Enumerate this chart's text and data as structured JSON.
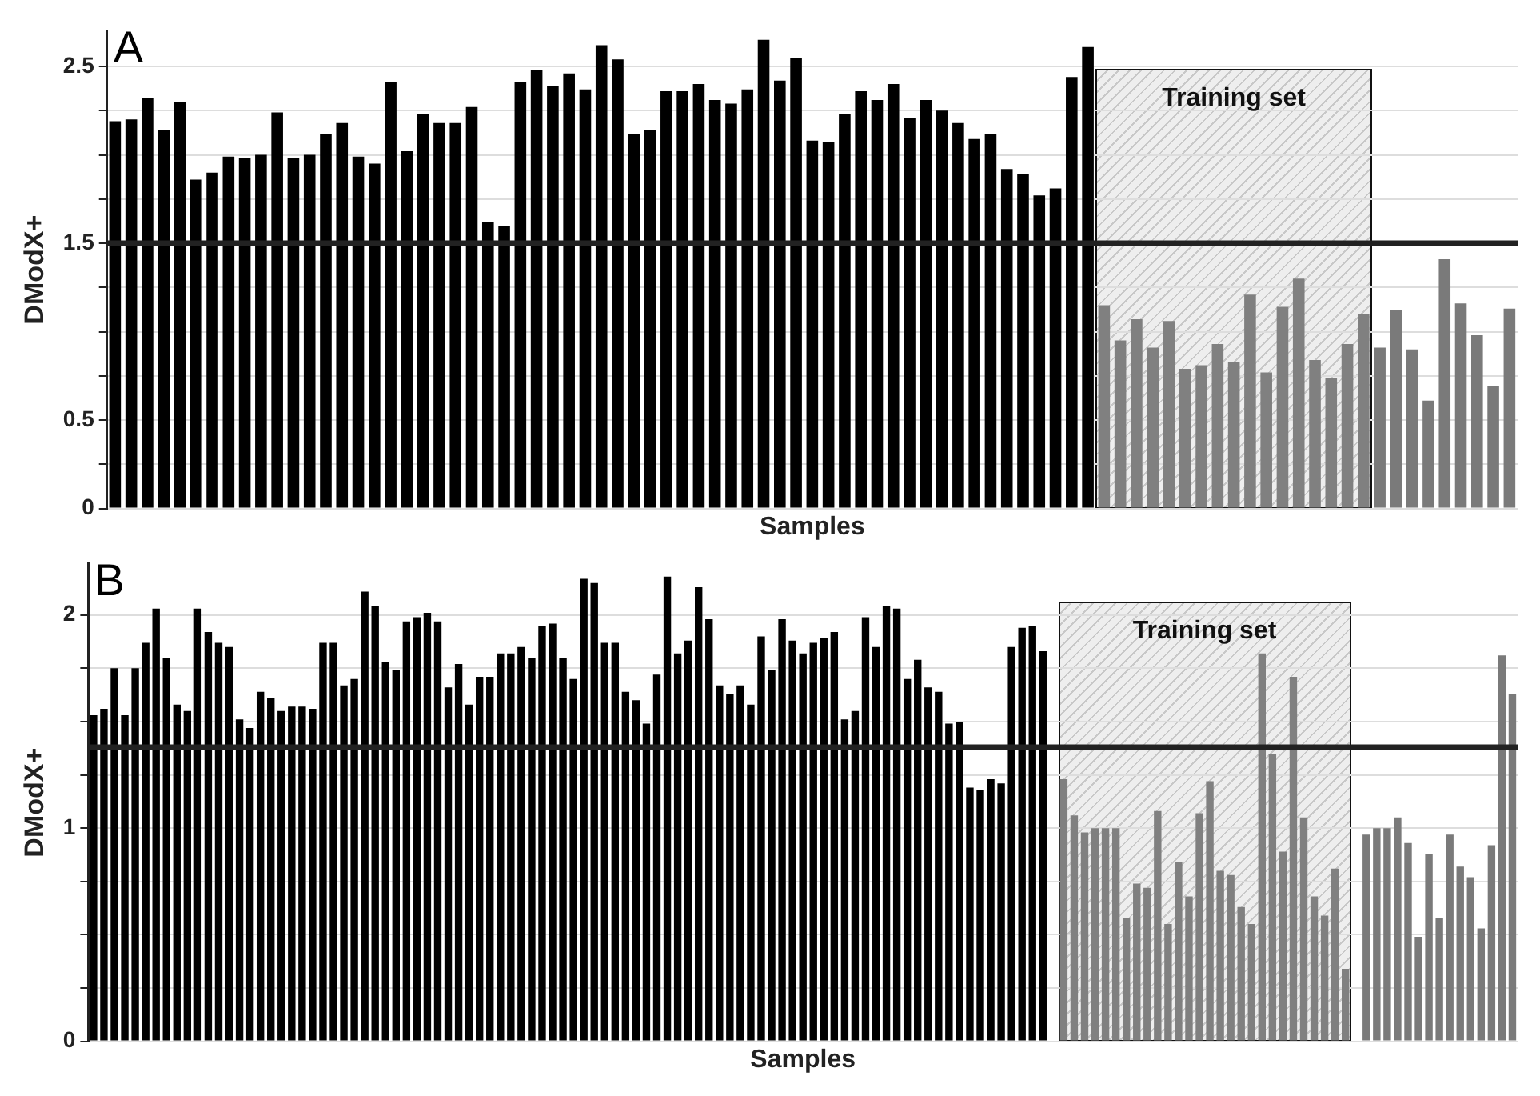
{
  "chart_data": [
    {
      "type": "bar",
      "title": "A",
      "xlabel": "Samples",
      "ylabel": "DModX+",
      "categories": [
        null,
        null,
        null,
        null,
        null,
        null,
        null,
        null,
        null,
        null,
        null,
        null,
        null,
        null,
        null,
        null,
        null,
        null,
        null,
        null,
        null,
        null,
        null,
        null,
        null,
        null,
        null,
        null,
        null,
        null,
        null,
        null,
        null,
        null,
        null,
        null,
        null,
        null,
        null,
        null,
        null,
        null,
        null,
        null,
        null,
        null,
        null,
        null,
        null,
        null,
        null,
        null,
        null,
        null,
        null,
        null,
        null,
        null,
        null,
        null,
        null,
        null,
        null,
        null,
        null,
        null,
        null,
        null,
        null,
        null,
        null,
        null,
        null,
        null,
        null,
        null,
        null,
        null,
        null,
        null,
        null,
        null,
        null,
        null,
        null,
        null,
        null
      ],
      "series": [
        {
          "color": "#000000",
          "values": [
            2.19,
            2.2,
            2.32,
            2.14,
            2.3,
            1.86,
            1.9,
            1.99,
            1.98,
            2.0,
            2.24,
            1.98,
            2.0,
            2.12,
            2.18,
            1.99,
            1.95,
            2.41,
            2.02,
            2.23,
            2.18,
            2.18,
            2.27,
            1.62,
            1.6,
            2.41,
            2.48,
            2.39,
            2.46,
            2.37,
            2.62,
            2.54,
            2.12,
            2.14,
            2.36,
            2.36,
            2.4,
            2.31,
            2.29,
            2.37,
            2.65,
            2.42,
            2.55,
            2.08,
            2.07,
            2.23,
            2.36,
            2.31,
            2.4,
            2.21,
            2.31,
            2.25,
            2.18,
            2.09,
            2.12,
            1.92,
            1.89,
            1.77,
            1.81,
            2.44,
            2.61,
            null,
            null,
            null,
            null,
            null,
            null,
            null,
            null,
            null,
            null,
            null,
            null,
            null,
            null,
            null,
            null,
            null,
            null,
            null,
            null,
            null,
            null,
            null,
            null,
            null,
            null
          ]
        },
        {
          "color": "#808080",
          "values": [
            null,
            null,
            null,
            null,
            null,
            null,
            null,
            null,
            null,
            null,
            null,
            null,
            null,
            null,
            null,
            null,
            null,
            null,
            null,
            null,
            null,
            null,
            null,
            null,
            null,
            null,
            null,
            null,
            null,
            null,
            null,
            null,
            null,
            null,
            null,
            null,
            null,
            null,
            null,
            null,
            null,
            null,
            null,
            null,
            null,
            null,
            null,
            null,
            null,
            null,
            null,
            null,
            null,
            null,
            null,
            null,
            null,
            null,
            null,
            null,
            null,
            1.15,
            0.95,
            1.07,
            0.91,
            1.06,
            0.79,
            0.81,
            0.93,
            0.83,
            1.21,
            0.77,
            1.14,
            1.3,
            0.84,
            0.74,
            0.93,
            1.1,
            null,
            null,
            null,
            null,
            null,
            null,
            null,
            null,
            null
          ]
        },
        {
          "color": "#7a7a7a",
          "values": [
            null,
            null,
            null,
            null,
            null,
            null,
            null,
            null,
            null,
            null,
            null,
            null,
            null,
            null,
            null,
            null,
            null,
            null,
            null,
            null,
            null,
            null,
            null,
            null,
            null,
            null,
            null,
            null,
            null,
            null,
            null,
            null,
            null,
            null,
            null,
            null,
            null,
            null,
            null,
            null,
            null,
            null,
            null,
            null,
            null,
            null,
            null,
            null,
            null,
            null,
            null,
            null,
            null,
            null,
            null,
            null,
            null,
            null,
            null,
            null,
            null,
            null,
            null,
            null,
            null,
            null,
            null,
            null,
            null,
            null,
            null,
            null,
            null,
            null,
            null,
            null,
            null,
            null,
            0.91,
            1.12,
            0.9,
            0.61,
            1.41,
            1.16,
            0.98,
            0.69,
            1.13
          ]
        }
      ],
      "ylim": [
        0,
        2.7
      ],
      "yticks": [
        0,
        {
          "value": 0.25,
          "label": null
        },
        0.5,
        {
          "value": 0.75,
          "label": null
        },
        {
          "value": 1,
          "label": null
        },
        {
          "value": 1.25,
          "label": null
        },
        1.5,
        {
          "value": 1.75,
          "label": null
        },
        {
          "value": 2,
          "label": null
        },
        {
          "value": 2.25,
          "label": null
        },
        2.5
      ],
      "ref_lines": [
        {
          "axis": "y",
          "value": 1.5,
          "color": "#222222"
        }
      ],
      "annotations": [
        "Training set"
      ],
      "grid": "y",
      "legend": false,
      "tick_labels": "y"
    },
    {
      "type": "bar",
      "title": "B",
      "xlabel": "Samples",
      "ylabel": "DModX+",
      "categories": [
        null,
        null,
        null,
        null,
        null,
        null,
        null,
        null,
        null,
        null,
        null,
        null,
        null,
        null,
        null,
        null,
        null,
        null,
        null,
        null,
        null,
        null,
        null,
        null,
        null,
        null,
        null,
        null,
        null,
        null,
        null,
        null,
        null,
        null,
        null,
        null,
        null,
        null,
        null,
        null,
        null,
        null,
        null,
        null,
        null,
        null,
        null,
        null,
        null,
        null,
        null,
        null,
        null,
        null,
        null,
        null,
        null,
        null,
        null,
        null,
        null,
        null,
        null,
        null,
        null,
        null,
        null,
        null,
        null,
        null,
        null,
        null,
        null,
        null,
        null,
        null,
        null,
        null,
        null,
        null,
        null,
        null,
        null,
        null,
        null,
        null,
        null,
        null,
        null,
        null,
        null,
        null,
        null,
        null,
        null,
        null,
        null,
        null,
        null,
        null,
        null,
        null,
        null,
        null,
        null,
        null,
        null,
        null,
        null,
        null,
        null,
        null,
        null,
        null,
        null,
        null,
        null,
        null,
        null,
        null,
        null,
        null,
        null,
        null,
        null,
        null,
        null,
        null,
        null,
        null,
        null,
        null,
        null,
        null,
        null,
        null,
        null
      ],
      "series": [
        {
          "color": "#000000",
          "values": [
            1.53,
            1.56,
            1.75,
            1.53,
            1.75,
            1.87,
            2.03,
            1.8,
            1.58,
            1.55,
            2.03,
            1.92,
            1.87,
            1.85,
            1.51,
            1.47,
            1.64,
            1.61,
            1.55,
            1.57,
            1.57,
            1.56,
            1.87,
            1.87,
            1.67,
            1.7,
            2.11,
            2.04,
            1.78,
            1.74,
            1.97,
            1.99,
            2.01,
            1.97,
            1.66,
            1.77,
            1.58,
            1.71,
            1.71,
            1.82,
            1.82,
            1.85,
            1.8,
            1.95,
            1.96,
            1.8,
            1.7,
            2.17,
            2.15,
            1.87,
            1.87,
            1.64,
            1.6,
            1.49,
            1.72,
            2.18,
            1.82,
            1.88,
            2.13,
            1.98,
            1.67,
            1.63,
            1.67,
            1.58,
            1.9,
            1.74,
            1.98,
            1.88,
            1.82,
            1.87,
            1.89,
            1.92,
            1.51,
            1.55,
            1.99,
            1.85,
            2.04,
            2.03,
            1.7,
            1.79,
            1.66,
            1.64,
            1.49,
            1.5,
            1.19,
            1.18,
            1.23,
            1.21,
            1.85,
            1.94,
            1.95,
            1.83,
            null,
            null,
            null,
            null,
            null,
            null,
            null,
            null,
            null,
            null,
            null,
            null,
            null,
            null,
            null,
            null,
            null,
            null,
            null,
            null,
            null,
            null,
            null,
            null,
            null,
            null,
            null,
            null,
            null,
            null,
            null,
            null,
            null,
            null,
            null,
            null,
            null,
            null,
            null,
            null,
            null,
            null,
            null,
            null,
            null
          ]
        },
        {
          "color": "#808080",
          "values": [
            null,
            null,
            null,
            null,
            null,
            null,
            null,
            null,
            null,
            null,
            null,
            null,
            null,
            null,
            null,
            null,
            null,
            null,
            null,
            null,
            null,
            null,
            null,
            null,
            null,
            null,
            null,
            null,
            null,
            null,
            null,
            null,
            null,
            null,
            null,
            null,
            null,
            null,
            null,
            null,
            null,
            null,
            null,
            null,
            null,
            null,
            null,
            null,
            null,
            null,
            null,
            null,
            null,
            null,
            null,
            null,
            null,
            null,
            null,
            null,
            null,
            null,
            null,
            null,
            null,
            null,
            null,
            null,
            null,
            null,
            null,
            null,
            null,
            null,
            null,
            null,
            null,
            null,
            null,
            null,
            null,
            null,
            null,
            null,
            null,
            null,
            null,
            null,
            null,
            null,
            null,
            null,
            null,
            1.23,
            1.06,
            0.98,
            1.0,
            1.0,
            1.0,
            0.58,
            0.74,
            0.72,
            1.08,
            0.55,
            0.84,
            0.68,
            1.07,
            1.22,
            0.8,
            0.78,
            0.63,
            0.55,
            1.82,
            1.35,
            0.89,
            1.71,
            1.05,
            0.68,
            0.59,
            0.81,
            0.34,
            null,
            null,
            null,
            null,
            null,
            null,
            null,
            null,
            null,
            null,
            null,
            null,
            null,
            null,
            null,
            null
          ]
        },
        {
          "color": "#7a7a7a",
          "values": [
            null,
            null,
            null,
            null,
            null,
            null,
            null,
            null,
            null,
            null,
            null,
            null,
            null,
            null,
            null,
            null,
            null,
            null,
            null,
            null,
            null,
            null,
            null,
            null,
            null,
            null,
            null,
            null,
            null,
            null,
            null,
            null,
            null,
            null,
            null,
            null,
            null,
            null,
            null,
            null,
            null,
            null,
            null,
            null,
            null,
            null,
            null,
            null,
            null,
            null,
            null,
            null,
            null,
            null,
            null,
            null,
            null,
            null,
            null,
            null,
            null,
            null,
            null,
            null,
            null,
            null,
            null,
            null,
            null,
            null,
            null,
            null,
            null,
            null,
            null,
            null,
            null,
            null,
            null,
            null,
            null,
            null,
            null,
            null,
            null,
            null,
            null,
            null,
            null,
            null,
            null,
            null,
            null,
            null,
            null,
            null,
            null,
            null,
            null,
            null,
            null,
            null,
            null,
            null,
            null,
            null,
            null,
            null,
            null,
            null,
            null,
            null,
            null,
            null,
            null,
            null,
            null,
            null,
            null,
            null,
            null,
            null,
            0.97,
            1.0,
            1.0,
            1.05,
            0.93,
            0.49,
            0.88,
            0.58,
            0.97,
            0.82,
            0.77,
            0.53,
            0.92,
            1.81,
            1.63
          ]
        }
      ],
      "ylim": [
        0,
        2.24
      ],
      "yticks": [
        0,
        {
          "value": 0.25,
          "label": null
        },
        {
          "value": 0.5,
          "label": null
        },
        {
          "value": 0.75,
          "label": null
        },
        1,
        {
          "value": 1.25,
          "label": null
        },
        {
          "value": 1.5,
          "label": null
        },
        {
          "value": 1.75,
          "label": null
        },
        2
      ],
      "ref_lines": [
        {
          "axis": "y",
          "value": 1.38,
          "color": "#222222"
        }
      ],
      "annotations": [
        "Training set"
      ],
      "grid": "y",
      "legend": false,
      "tick_labels": "y"
    }
  ]
}
